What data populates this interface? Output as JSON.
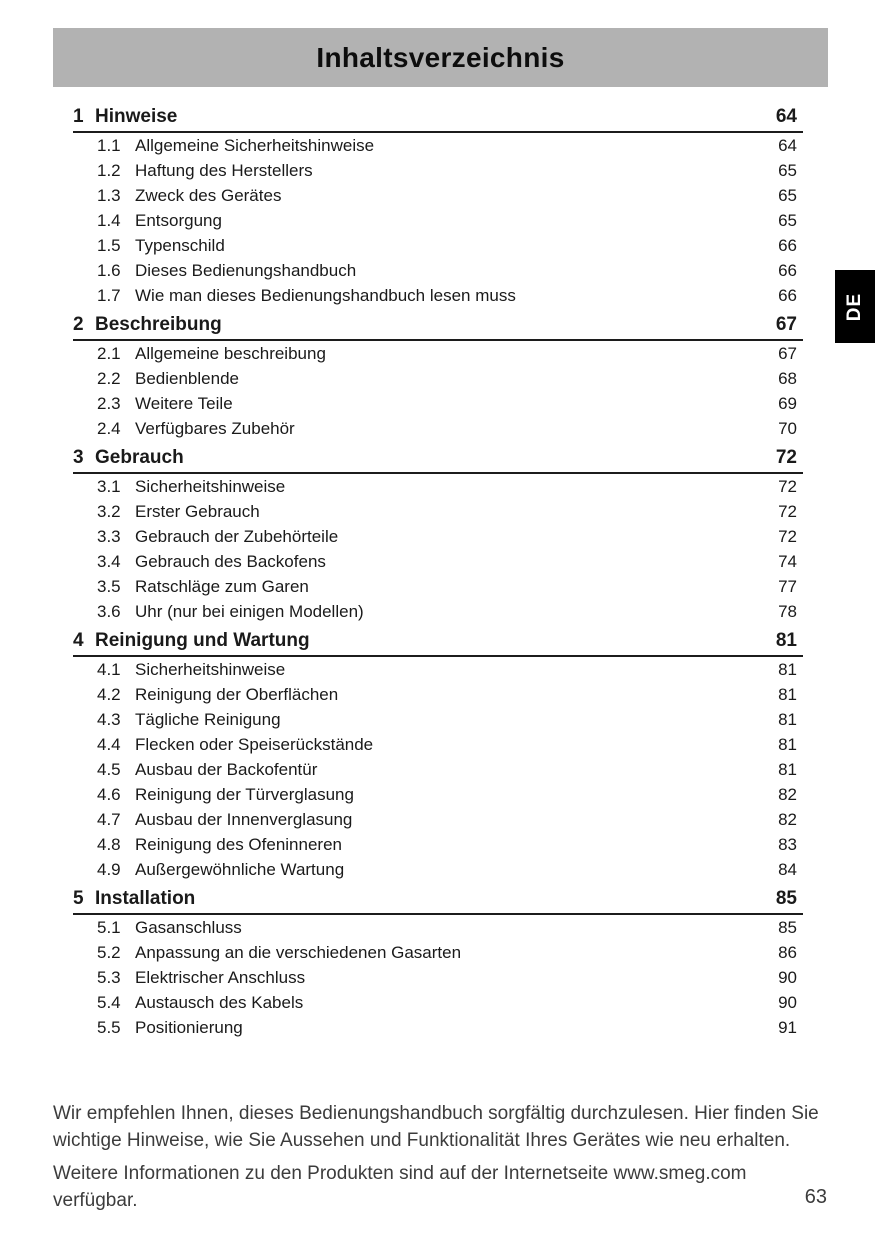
{
  "page": {
    "header_title": "Inhaltsverzeichnis",
    "language_tab": "DE",
    "page_number": "63"
  },
  "toc": {
    "chapters": [
      {
        "num": "1",
        "title": "Hinweise",
        "page": "64",
        "items": [
          {
            "num": "1.1",
            "title": "Allgemeine Sicherheitshinweise",
            "page": "64"
          },
          {
            "num": "1.2",
            "title": "Haftung des Herstellers",
            "page": "65"
          },
          {
            "num": "1.3",
            "title": "Zweck des Gerätes",
            "page": "65"
          },
          {
            "num": "1.4",
            "title": "Entsorgung",
            "page": "65"
          },
          {
            "num": "1.5",
            "title": "Typenschild",
            "page": "66"
          },
          {
            "num": "1.6",
            "title": "Dieses Bedienungshandbuch",
            "page": "66"
          },
          {
            "num": "1.7",
            "title": "Wie man dieses Bedienungshandbuch lesen muss",
            "page": "66"
          }
        ]
      },
      {
        "num": "2",
        "title": "Beschreibung",
        "page": "67",
        "items": [
          {
            "num": "2.1",
            "title": "Allgemeine beschreibung",
            "page": "67"
          },
          {
            "num": "2.2",
            "title": "Bedienblende",
            "page": "68"
          },
          {
            "num": "2.3",
            "title": "Weitere Teile",
            "page": "69"
          },
          {
            "num": "2.4",
            "title": "Verfügbares Zubehör",
            "page": "70"
          }
        ]
      },
      {
        "num": "3",
        "title": "Gebrauch",
        "page": "72",
        "items": [
          {
            "num": "3.1",
            "title": "Sicherheitshinweise",
            "page": "72"
          },
          {
            "num": "3.2",
            "title": "Erster Gebrauch",
            "page": "72"
          },
          {
            "num": "3.3",
            "title": "Gebrauch der Zubehörteile",
            "page": "72"
          },
          {
            "num": "3.4",
            "title": "Gebrauch des Backofens",
            "page": "74"
          },
          {
            "num": "3.5",
            "title": "Ratschläge zum Garen",
            "page": "77"
          },
          {
            "num": "3.6",
            "title": "Uhr (nur bei einigen Modellen)",
            "page": "78"
          }
        ]
      },
      {
        "num": "4",
        "title": "Reinigung und Wartung",
        "page": "81",
        "items": [
          {
            "num": "4.1",
            "title": "Sicherheitshinweise",
            "page": "81"
          },
          {
            "num": "4.2",
            "title": "Reinigung der Oberflächen",
            "page": "81"
          },
          {
            "num": "4.3",
            "title": "Tägliche Reinigung",
            "page": "81"
          },
          {
            "num": "4.4",
            "title": "Flecken oder Speiserückstände",
            "page": "81"
          },
          {
            "num": "4.5",
            "title": "Ausbau der Backofentür",
            "page": "81"
          },
          {
            "num": "4.6",
            "title": "Reinigung der Türverglasung",
            "page": "82"
          },
          {
            "num": "4.7",
            "title": "Ausbau der Innenverglasung",
            "page": "82"
          },
          {
            "num": "4.8",
            "title": "Reinigung des Ofeninneren",
            "page": "83"
          },
          {
            "num": "4.9",
            "title": "Außergewöhnliche Wartung",
            "page": "84"
          }
        ]
      },
      {
        "num": "5",
        "title": "Installation",
        "page": "85",
        "items": [
          {
            "num": "5.1",
            "title": "Gasanschluss",
            "page": "85"
          },
          {
            "num": "5.2",
            "title": "Anpassung an die verschiedenen Gasarten",
            "page": "86"
          },
          {
            "num": "5.3",
            "title": "Elektrischer Anschluss",
            "page": "90"
          },
          {
            "num": "5.4",
            "title": "Austausch des Kabels",
            "page": "90"
          },
          {
            "num": "5.5",
            "title": "Positionierung",
            "page": "91"
          }
        ]
      }
    ]
  },
  "footer": {
    "paragraph1": "Wir empfehlen Ihnen, dieses Bedienungshandbuch sorgfältig durchzulesen. Hier finden Sie wichtige Hinweise, wie Sie Aussehen und Funktionalität Ihres Gerätes wie neu erhalten.",
    "paragraph2": "Weitere Informationen zu den Produkten sind auf der Internetseite www.smeg.com verfügbar."
  }
}
